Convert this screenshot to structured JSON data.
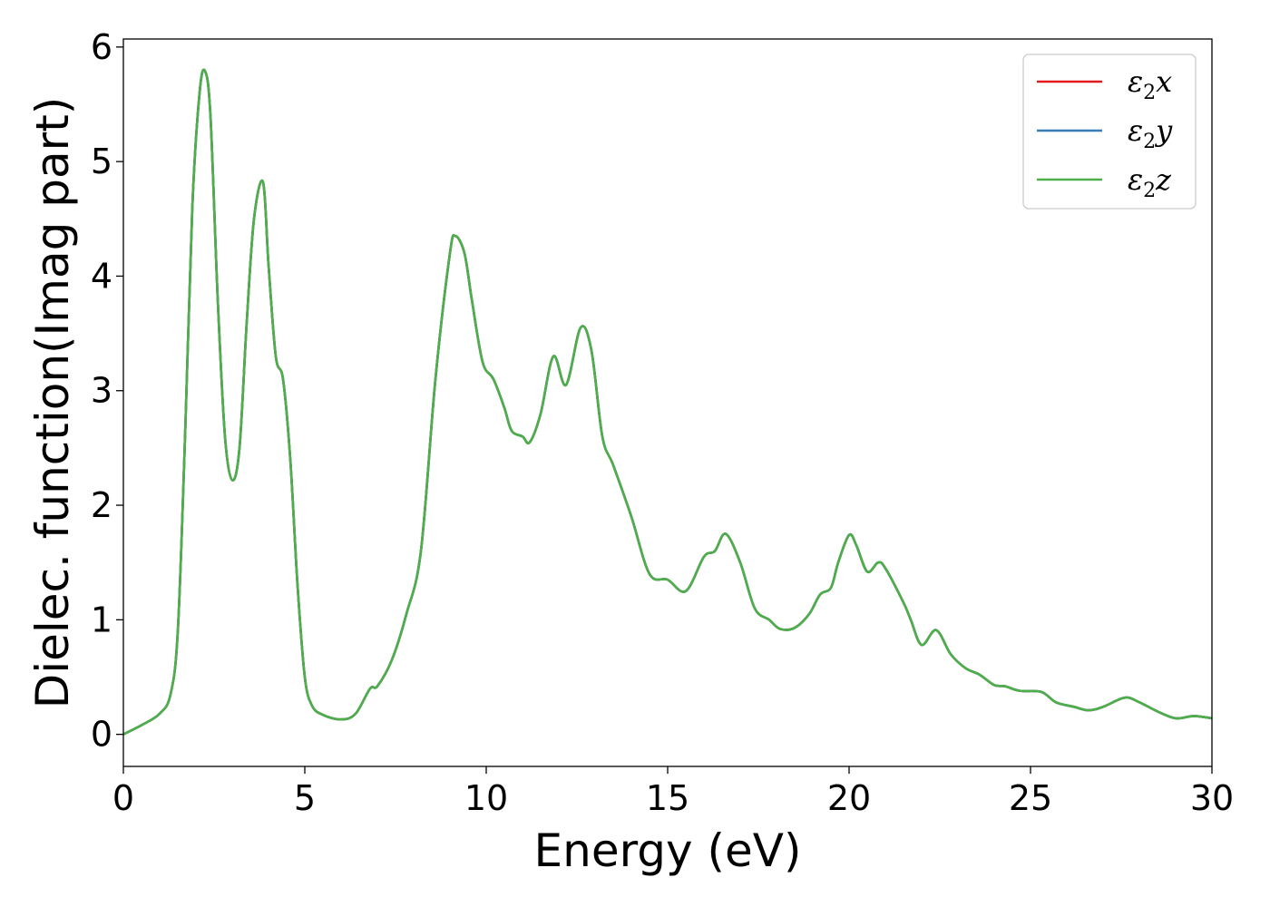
{
  "chart_data": {
    "type": "line",
    "title": "",
    "xlabel": "Energy (eV)",
    "ylabel": "Dielec. function(Imag part)",
    "xlim": [
      0,
      30
    ],
    "ylim": [
      -0.28,
      6.07
    ],
    "xticks": [
      0,
      5,
      10,
      15,
      20,
      25,
      30
    ],
    "xtick_labels": [
      "0",
      "5",
      "10",
      "15",
      "20",
      "25",
      "30"
    ],
    "yticks": [
      0,
      1,
      2,
      3,
      4,
      5,
      6
    ],
    "ytick_labels": [
      "0",
      "1",
      "2",
      "3",
      "4",
      "5",
      "6"
    ],
    "grid": false,
    "legend_position": "top-right",
    "legend": [
      {
        "symbol": "ε",
        "sub": "2",
        "axis": "x",
        "color": "#e41a1c"
      },
      {
        "symbol": "ε",
        "sub": "2",
        "axis": "y",
        "color": "#377eb8"
      },
      {
        "symbol": "ε",
        "sub": "2",
        "axis": "z",
        "color": "#4daf4a"
      }
    ],
    "x": [
      0,
      0.5,
      1.0,
      1.3,
      1.5,
      1.7,
      1.9,
      2.1,
      2.25,
      2.4,
      2.6,
      2.8,
      3.0,
      3.2,
      3.4,
      3.6,
      3.85,
      4.0,
      4.2,
      4.4,
      4.6,
      4.8,
      5.0,
      5.2,
      5.5,
      6.0,
      6.4,
      6.8,
      7.0,
      7.4,
      7.8,
      8.2,
      8.6,
      9.0,
      9.15,
      9.4,
      9.6,
      9.9,
      10.2,
      10.5,
      10.7,
      11.0,
      11.2,
      11.5,
      11.85,
      12.2,
      12.6,
      12.9,
      13.2,
      13.5,
      14.0,
      14.5,
      15.0,
      15.5,
      16.0,
      16.3,
      16.6,
      17.0,
      17.4,
      17.8,
      18.1,
      18.5,
      18.9,
      19.2,
      19.5,
      19.7,
      20.0,
      20.2,
      20.5,
      20.8,
      21.0,
      21.5,
      21.7,
      22.0,
      22.4,
      22.8,
      23.2,
      23.6,
      24.0,
      24.3,
      24.7,
      25.3,
      25.7,
      26.2,
      26.6,
      27.0,
      27.6,
      28.0,
      28.5,
      29.0,
      29.5,
      30.0
    ],
    "series": [
      {
        "name": "x",
        "color": "#e41a1c",
        "values": [
          0.0,
          0.08,
          0.18,
          0.35,
          0.9,
          2.6,
          4.6,
          5.6,
          5.79,
          5.4,
          3.8,
          2.6,
          2.22,
          2.5,
          3.6,
          4.5,
          4.82,
          4.1,
          3.3,
          3.1,
          2.4,
          1.3,
          0.5,
          0.25,
          0.17,
          0.13,
          0.18,
          0.4,
          0.42,
          0.65,
          1.05,
          1.6,
          3.1,
          4.2,
          4.35,
          4.2,
          3.8,
          3.25,
          3.1,
          2.85,
          2.65,
          2.6,
          2.55,
          2.8,
          3.3,
          3.05,
          3.55,
          3.35,
          2.6,
          2.35,
          1.9,
          1.4,
          1.35,
          1.25,
          1.55,
          1.6,
          1.75,
          1.5,
          1.1,
          1.0,
          0.92,
          0.93,
          1.05,
          1.22,
          1.28,
          1.5,
          1.74,
          1.65,
          1.42,
          1.5,
          1.45,
          1.15,
          1.0,
          0.78,
          0.91,
          0.7,
          0.58,
          0.52,
          0.43,
          0.42,
          0.38,
          0.37,
          0.28,
          0.24,
          0.21,
          0.24,
          0.32,
          0.28,
          0.2,
          0.14,
          0.16,
          0.14
        ]
      },
      {
        "name": "y",
        "color": "#377eb8",
        "values": [
          0.0,
          0.08,
          0.18,
          0.35,
          0.9,
          2.6,
          4.6,
          5.6,
          5.79,
          5.4,
          3.8,
          2.6,
          2.22,
          2.5,
          3.6,
          4.5,
          4.82,
          4.1,
          3.3,
          3.1,
          2.4,
          1.3,
          0.5,
          0.25,
          0.17,
          0.13,
          0.18,
          0.4,
          0.42,
          0.65,
          1.05,
          1.6,
          3.1,
          4.2,
          4.35,
          4.2,
          3.8,
          3.25,
          3.1,
          2.85,
          2.65,
          2.6,
          2.55,
          2.8,
          3.3,
          3.05,
          3.55,
          3.35,
          2.6,
          2.35,
          1.9,
          1.4,
          1.35,
          1.25,
          1.55,
          1.6,
          1.75,
          1.5,
          1.1,
          1.0,
          0.92,
          0.93,
          1.05,
          1.22,
          1.28,
          1.5,
          1.74,
          1.65,
          1.42,
          1.5,
          1.45,
          1.15,
          1.0,
          0.78,
          0.91,
          0.7,
          0.58,
          0.52,
          0.43,
          0.42,
          0.38,
          0.37,
          0.28,
          0.24,
          0.21,
          0.24,
          0.32,
          0.28,
          0.2,
          0.14,
          0.16,
          0.14
        ]
      },
      {
        "name": "z",
        "color": "#4daf4a",
        "values": [
          0.0,
          0.08,
          0.18,
          0.35,
          0.9,
          2.6,
          4.6,
          5.6,
          5.79,
          5.4,
          3.8,
          2.6,
          2.22,
          2.5,
          3.6,
          4.5,
          4.82,
          4.1,
          3.3,
          3.1,
          2.4,
          1.3,
          0.5,
          0.25,
          0.17,
          0.13,
          0.18,
          0.4,
          0.42,
          0.65,
          1.05,
          1.6,
          3.1,
          4.2,
          4.35,
          4.2,
          3.8,
          3.25,
          3.1,
          2.85,
          2.65,
          2.6,
          2.55,
          2.8,
          3.3,
          3.05,
          3.55,
          3.35,
          2.6,
          2.35,
          1.9,
          1.4,
          1.35,
          1.25,
          1.55,
          1.6,
          1.75,
          1.5,
          1.1,
          1.0,
          0.92,
          0.93,
          1.05,
          1.22,
          1.28,
          1.5,
          1.74,
          1.65,
          1.42,
          1.5,
          1.45,
          1.15,
          1.0,
          0.78,
          0.91,
          0.7,
          0.58,
          0.52,
          0.43,
          0.42,
          0.38,
          0.37,
          0.28,
          0.24,
          0.21,
          0.24,
          0.32,
          0.28,
          0.2,
          0.14,
          0.16,
          0.14
        ]
      }
    ]
  }
}
